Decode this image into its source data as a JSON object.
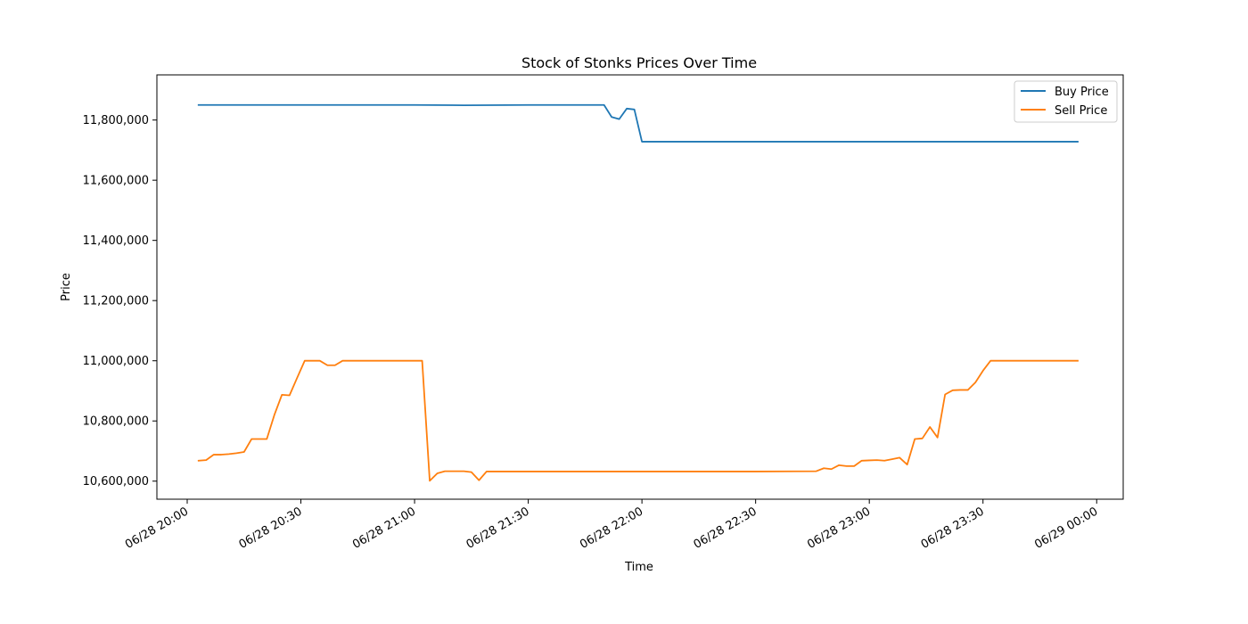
{
  "chart_data": {
    "type": "line",
    "title": "Stock of Stonks Prices Over Time",
    "xlabel": "Time",
    "ylabel": "Price",
    "xlim": [
      "06/28 19:52",
      "06/29 00:07"
    ],
    "ylim": [
      10540000,
      11950000
    ],
    "y_ticks": [
      10600000,
      10800000,
      11000000,
      11200000,
      11400000,
      11600000,
      11800000
    ],
    "y_tick_labels": [
      "10,600,000",
      "10,800,000",
      "11,000,000",
      "11,200,000",
      "11,400,000",
      "11,600,000",
      "11,800,000"
    ],
    "x_ticks": [
      "06/28 20:00",
      "06/28 20:30",
      "06/28 21:00",
      "06/28 21:30",
      "06/28 22:00",
      "06/28 22:30",
      "06/28 23:00",
      "06/28 23:30",
      "06/29 00:00"
    ],
    "x_tick_labels": [
      "06/28 20:00",
      "06/28 20:30",
      "06/28 21:00",
      "06/28 21:30",
      "06/28 22:00",
      "06/28 22:30",
      "06/28 23:00",
      "06/28 23:30",
      "06/29 00:00"
    ],
    "grid": false,
    "legend_position": "top-right",
    "series": [
      {
        "name": "Buy Price",
        "color": "#1f77b4",
        "points": [
          [
            "06/28 20:03",
            11850000
          ],
          [
            "06/28 20:30",
            11850000
          ],
          [
            "06/28 21:00",
            11850000
          ],
          [
            "06/28 21:13",
            11849000
          ],
          [
            "06/28 21:30",
            11850000
          ],
          [
            "06/28 21:50",
            11850000
          ],
          [
            "06/28 21:52",
            11810000
          ],
          [
            "06/28 21:54",
            11803000
          ],
          [
            "06/28 21:56",
            11838000
          ],
          [
            "06/28 21:58",
            11835000
          ],
          [
            "06/28 22:00",
            11728000
          ],
          [
            "06/28 23:00",
            11728000
          ],
          [
            "06/28 23:55",
            11728000
          ]
        ]
      },
      {
        "name": "Sell Price",
        "color": "#ff7f0e",
        "points": [
          [
            "06/28 20:03",
            10668000
          ],
          [
            "06/28 20:05",
            10670000
          ],
          [
            "06/28 20:07",
            10688000
          ],
          [
            "06/28 20:09",
            10688000
          ],
          [
            "06/28 20:11",
            10690000
          ],
          [
            "06/28 20:13",
            10693000
          ],
          [
            "06/28 20:15",
            10697000
          ],
          [
            "06/28 20:17",
            10740000
          ],
          [
            "06/28 20:19",
            10740000
          ],
          [
            "06/28 20:21",
            10740000
          ],
          [
            "06/28 20:23",
            10820000
          ],
          [
            "06/28 20:25",
            10887000
          ],
          [
            "06/28 20:27",
            10885000
          ],
          [
            "06/28 20:29",
            10943000
          ],
          [
            "06/28 20:31",
            11000000
          ],
          [
            "06/28 20:33",
            11000000
          ],
          [
            "06/28 20:35",
            11000000
          ],
          [
            "06/28 20:37",
            10985000
          ],
          [
            "06/28 20:39",
            10985000
          ],
          [
            "06/28 20:41",
            11000000
          ],
          [
            "06/28 21:02",
            11000000
          ],
          [
            "06/28 21:04",
            10601000
          ],
          [
            "06/28 21:06",
            10626000
          ],
          [
            "06/28 21:08",
            10633000
          ],
          [
            "06/28 21:13",
            10633000
          ],
          [
            "06/28 21:15",
            10630000
          ],
          [
            "06/28 21:17",
            10603000
          ],
          [
            "06/28 21:19",
            10632000
          ],
          [
            "06/28 21:30",
            10632000
          ],
          [
            "06/28 22:00",
            10632000
          ],
          [
            "06/28 22:30",
            10632000
          ],
          [
            "06/28 22:46",
            10633000
          ],
          [
            "06/28 22:48",
            10643000
          ],
          [
            "06/28 22:50",
            10640000
          ],
          [
            "06/28 22:52",
            10653000
          ],
          [
            "06/28 22:54",
            10650000
          ],
          [
            "06/28 22:56",
            10650000
          ],
          [
            "06/28 22:58",
            10668000
          ],
          [
            "06/28 23:00",
            10669000
          ],
          [
            "06/28 23:02",
            10670000
          ],
          [
            "06/28 23:04",
            10668000
          ],
          [
            "06/28 23:06",
            10673000
          ],
          [
            "06/28 23:08",
            10678000
          ],
          [
            "06/28 23:10",
            10655000
          ],
          [
            "06/28 23:12",
            10740000
          ],
          [
            "06/28 23:14",
            10742000
          ],
          [
            "06/28 23:16",
            10780000
          ],
          [
            "06/28 23:18",
            10745000
          ],
          [
            "06/28 23:20",
            10888000
          ],
          [
            "06/28 23:22",
            10902000
          ],
          [
            "06/28 23:24",
            10903000
          ],
          [
            "06/28 23:26",
            10903000
          ],
          [
            "06/28 23:28",
            10928000
          ],
          [
            "06/28 23:30",
            10967000
          ],
          [
            "06/28 23:32",
            11000000
          ],
          [
            "06/28 23:55",
            11000000
          ]
        ]
      }
    ]
  }
}
